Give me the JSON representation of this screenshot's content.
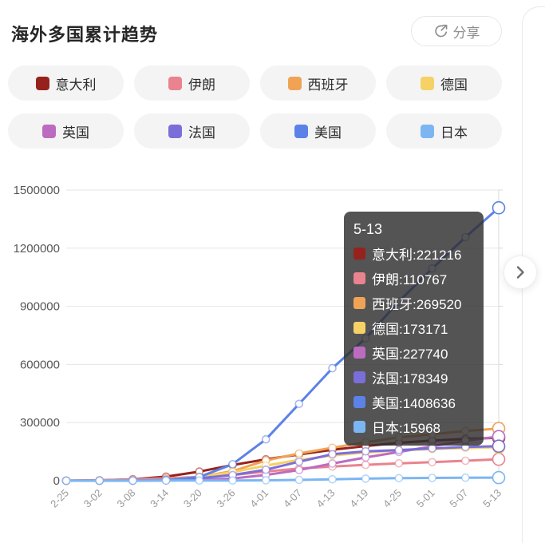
{
  "header": {
    "title": "海外多国累计趋势",
    "share_label": "分享"
  },
  "legend": {
    "items": [
      {
        "id": "italy",
        "label": "意大利",
        "color": "#96221E"
      },
      {
        "id": "iran",
        "label": "伊朗",
        "color": "#E9838F"
      },
      {
        "id": "spain",
        "label": "西班牙",
        "color": "#F0A355"
      },
      {
        "id": "germany",
        "label": "德国",
        "color": "#F5D166"
      },
      {
        "id": "uk",
        "label": "英国",
        "color": "#BC6CC0"
      },
      {
        "id": "france",
        "label": "法国",
        "color": "#7B6ED9"
      },
      {
        "id": "usa",
        "label": "美国",
        "color": "#5C82E8"
      },
      {
        "id": "japan",
        "label": "日本",
        "color": "#7BB6F2"
      }
    ]
  },
  "chart_data": {
    "type": "line",
    "x": [
      "2-25",
      "3-02",
      "3-08",
      "3-14",
      "3-20",
      "3-26",
      "4-01",
      "4-07",
      "4-13",
      "4-19",
      "4-25",
      "5-01",
      "5-07",
      "5-13"
    ],
    "yticks": [
      0,
      300000,
      600000,
      900000,
      1200000,
      1500000
    ],
    "ylim": [
      0,
      1500000
    ],
    "grid": true,
    "legend_position": "top",
    "series": [
      {
        "id": "italy",
        "name": "意大利",
        "color": "#96221E",
        "values": [
          323,
          2036,
          7375,
          21157,
          47021,
          80589,
          110574,
          135586,
          159516,
          178972,
          195351,
          207428,
          215858,
          221216
        ]
      },
      {
        "id": "iran",
        "name": "伊朗",
        "color": "#E9838F",
        "values": [
          95,
          1501,
          6566,
          12729,
          19644,
          29406,
          47593,
          62589,
          73303,
          82211,
          89328,
          95646,
          103135,
          110767
        ]
      },
      {
        "id": "spain",
        "name": "西班牙",
        "color": "#F0A355",
        "values": [
          6,
          120,
          674,
          6391,
          19980,
          49515,
          104118,
          140510,
          170099,
          198674,
          223759,
          239479,
          256855,
          269520
        ]
      },
      {
        "id": "germany",
        "name": "德国",
        "color": "#F5D166",
        "values": [
          16,
          150,
          1040,
          4585,
          19848,
          43938,
          77872,
          107663,
          130072,
          145694,
          156513,
          163009,
          168551,
          173171
        ]
      },
      {
        "id": "uk",
        "name": "英国",
        "color": "#BC6CC0",
        "values": [
          13,
          36,
          273,
          1140,
          3983,
          11658,
          29474,
          55242,
          88621,
          120067,
          148377,
          177454,
          206715,
          227740
        ]
      },
      {
        "id": "france",
        "name": "法国",
        "color": "#7B6ED9",
        "values": [
          13,
          191,
          1126,
          4499,
          12612,
          29155,
          56989,
          98010,
          136779,
          151793,
          158183,
          166976,
          174111,
          178349
        ]
      },
      {
        "id": "usa",
        "name": "美国",
        "color": "#5C82E8",
        "values": [
          53,
          98,
          518,
          2770,
          19138,
          85356,
          213372,
          396223,
          580619,
          735287,
          925038,
          1095023,
          1256972,
          1408636
        ]
      },
      {
        "id": "japan",
        "name": "日本",
        "color": "#7BB6F2",
        "values": [
          170,
          254,
          455,
          734,
          996,
          1387,
          2178,
          4257,
          7370,
          10751,
          13231,
          14281,
          15463,
          15968
        ]
      }
    ]
  },
  "tooltip": {
    "date": "5-13",
    "items": [
      {
        "id": "italy",
        "label": "意大利",
        "value": "221216",
        "color": "#96221E"
      },
      {
        "id": "iran",
        "label": "伊朗",
        "value": "110767",
        "color": "#E9838F"
      },
      {
        "id": "spain",
        "label": "西班牙",
        "value": "269520",
        "color": "#F0A355"
      },
      {
        "id": "germany",
        "label": "德国",
        "value": "173171",
        "color": "#F5D166"
      },
      {
        "id": "uk",
        "label": "英国",
        "value": "227740",
        "color": "#BC6CC0"
      },
      {
        "id": "france",
        "label": "法国",
        "value": "178349",
        "color": "#7B6ED9"
      },
      {
        "id": "usa",
        "label": "美国",
        "value": "1408636",
        "color": "#5C82E8"
      },
      {
        "id": "japan",
        "label": "日本",
        "value": "15968",
        "color": "#7BB6F2"
      }
    ]
  },
  "nav": {
    "next_label": "next"
  }
}
